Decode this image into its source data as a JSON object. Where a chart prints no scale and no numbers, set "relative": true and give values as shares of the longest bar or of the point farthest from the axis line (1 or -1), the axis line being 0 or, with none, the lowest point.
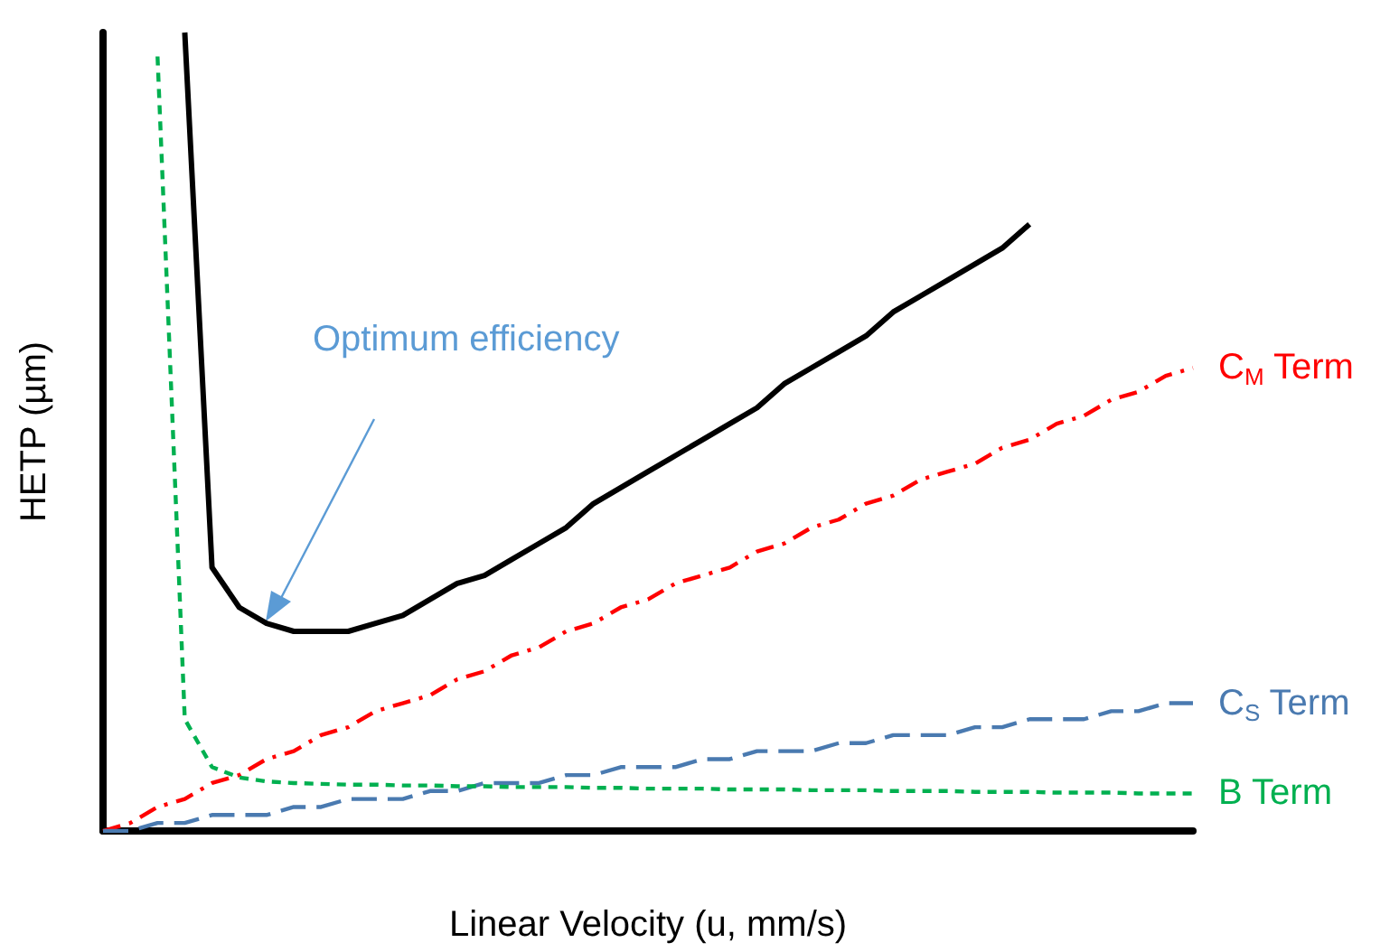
{
  "chart_data": {
    "type": "line",
    "relative": true,
    "xlabel": "Linear Velocity (u, mm/s)",
    "ylabel": "HETP (µm)",
    "legend": false,
    "marker": "none",
    "grid": false,
    "annotations": [
      "Optimum efficiency"
    ],
    "categories": [
      null,
      null,
      null,
      null,
      null,
      null,
      null,
      null,
      null,
      null,
      null,
      null,
      null,
      null,
      null,
      null,
      null,
      null,
      null,
      null,
      null,
      null,
      null,
      null,
      null,
      null,
      null,
      null,
      null,
      null,
      null,
      null,
      null,
      null,
      null,
      null,
      null,
      null,
      null,
      null,
      null
    ],
    "series": [
      {
        "color": "#000000",
        "line_style": "solid",
        "values": [
          null,
          null,
          null,
          1.0,
          0.33,
          0.28,
          0.26,
          0.25,
          0.25,
          0.25,
          0.26,
          0.27,
          0.29,
          0.31,
          0.32,
          0.34,
          0.36,
          0.38,
          0.41,
          0.43,
          0.45,
          0.47,
          0.49,
          0.51,
          0.53,
          0.56,
          0.58,
          0.6,
          0.62,
          0.65,
          0.67,
          0.69,
          0.71,
          0.73,
          0.76,
          null,
          null,
          null,
          null,
          null,
          null
        ]
      },
      {
        "name": "C$_{M}$ Term",
        "color": "#ff0000",
        "line_style": "dashdot",
        "values": [
          0,
          0.01,
          0.03,
          0.04,
          0.06,
          0.07,
          0.09,
          0.1,
          0.12,
          0.13,
          0.15,
          0.16,
          0.17,
          0.19,
          0.2,
          0.22,
          0.23,
          0.25,
          0.26,
          0.28,
          0.29,
          0.31,
          0.32,
          0.33,
          0.35,
          0.36,
          0.38,
          0.39,
          0.41,
          0.42,
          0.44,
          0.45,
          0.46,
          0.48,
          0.49,
          0.51,
          0.52,
          0.54,
          0.55,
          0.57,
          0.58
        ]
      },
      {
        "name": "C$_{S}$ Term",
        "color": "#4a7ab0",
        "line_style": "dashed",
        "values": [
          0,
          0,
          0.01,
          0.01,
          0.02,
          0.02,
          0.02,
          0.03,
          0.03,
          0.04,
          0.04,
          0.04,
          0.05,
          0.05,
          0.06,
          0.06,
          0.06,
          0.07,
          0.07,
          0.08,
          0.08,
          0.08,
          0.09,
          0.09,
          0.1,
          0.1,
          0.1,
          0.11,
          0.11,
          0.12,
          0.12,
          0.12,
          0.13,
          0.13,
          0.14,
          0.14,
          0.14,
          0.15,
          0.15,
          0.16,
          0.16
        ]
      },
      {
        "name": "B Term",
        "color": "#00b050",
        "line_style": "dotted",
        "values": [
          null,
          null,
          0.97,
          0.14,
          0.08,
          0.067,
          0.062,
          0.06,
          0.059,
          0.058,
          0.058,
          0.057,
          0.057,
          0.056,
          0.056,
          0.055,
          0.055,
          0.055,
          0.054,
          0.054,
          0.053,
          0.053,
          0.053,
          0.052,
          0.052,
          0.052,
          0.051,
          0.051,
          0.051,
          0.05,
          0.05,
          0.05,
          0.049,
          0.049,
          0.049,
          0.048,
          0.048,
          0.048,
          0.047,
          0.047,
          0.047
        ]
      }
    ]
  }
}
